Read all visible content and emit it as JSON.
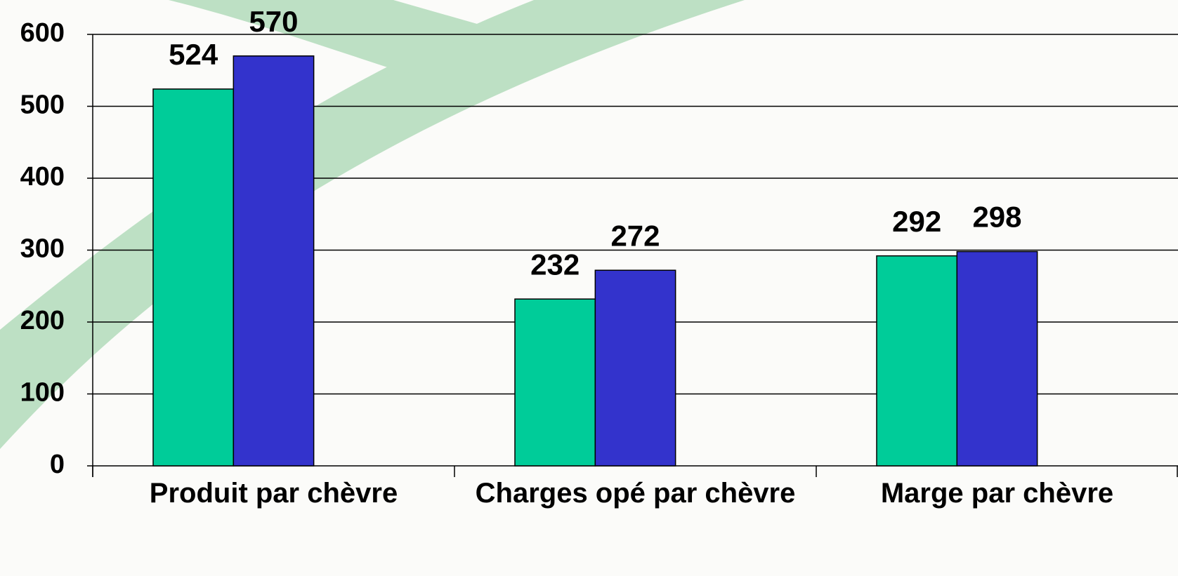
{
  "chart_data": {
    "type": "bar",
    "categories": [
      "Produit par chèvre",
      "Charges opé par chèvre",
      "Marge par chèvre"
    ],
    "series": [
      {
        "color": "#00cc99",
        "values": [
          524,
          232,
          292
        ]
      },
      {
        "color": "#3333cc",
        "values": [
          570,
          272,
          298
        ]
      }
    ],
    "ylim": [
      0,
      600
    ],
    "yticks": [
      0,
      100,
      200,
      300,
      400,
      500,
      600
    ],
    "grid": true
  }
}
